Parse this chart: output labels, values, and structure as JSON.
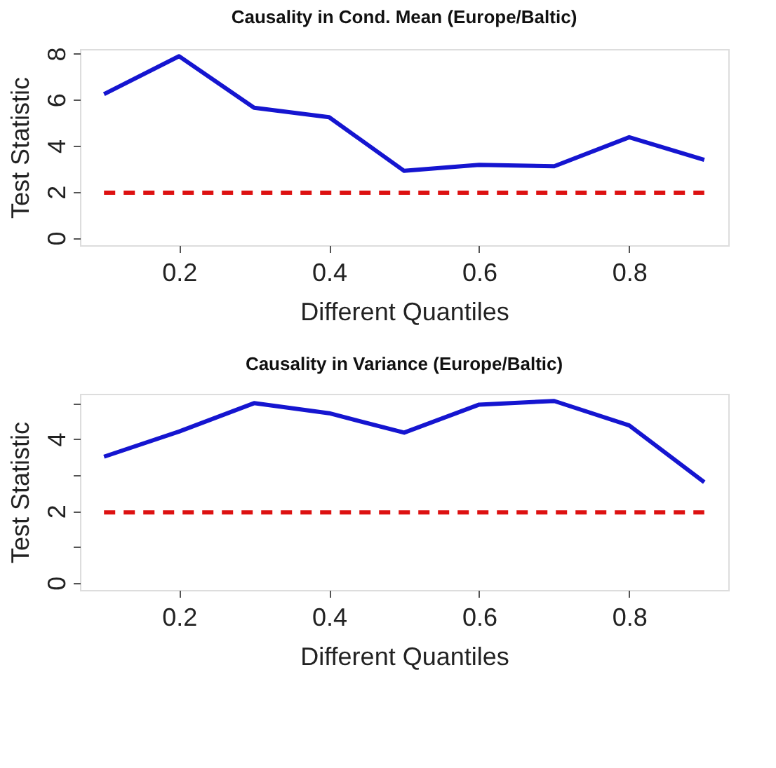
{
  "chart_data": [
    {
      "type": "line",
      "title": "Causality in Cond. Mean (Europe/Baltic)",
      "xlabel": "Different Quantiles",
      "ylabel": "Test Statistic",
      "x": [
        0.1,
        0.2,
        0.3,
        0.4,
        0.5,
        0.6,
        0.7,
        0.8,
        0.9
      ],
      "series": [
        {
          "color": "#1515d0",
          "values": [
            6.24,
            7.89,
            5.65,
            5.24,
            2.91,
            3.17,
            3.11,
            4.37,
            3.39
          ]
        }
      ],
      "ref_lines": [
        {
          "axis": "y",
          "value": 1.96,
          "color": "#dd1111",
          "line_style": "dashed"
        }
      ],
      "xlim": [
        0.068,
        0.932
      ],
      "xticks": [
        0.2,
        0.4,
        0.6,
        0.8
      ],
      "ylim": [
        -0.32,
        8.2
      ],
      "yticks": [
        0,
        2,
        4,
        6,
        8
      ],
      "grid": false,
      "marker": "none",
      "line_style": "solid"
    },
    {
      "type": "line",
      "title": "Causality in Variance (Europe/Baltic)",
      "xlabel": "Different Quantiles",
      "ylabel": "Test Statistic",
      "x": [
        0.1,
        0.2,
        0.3,
        0.4,
        0.5,
        0.6,
        0.7,
        0.8,
        0.9
      ],
      "series": [
        {
          "color": "#1515d0",
          "values": [
            3.51,
            4.21,
            5.0,
            4.72,
            4.18,
            4.96,
            5.06,
            4.38,
            2.8
          ]
        }
      ],
      "ref_lines": [
        {
          "axis": "y",
          "value": 1.96,
          "color": "#dd1111",
          "line_style": "dashed"
        }
      ],
      "xlim": [
        0.068,
        0.932
      ],
      "xticks": [
        0.2,
        0.4,
        0.6,
        0.8
      ],
      "ylim": [
        -0.2,
        5.26
      ],
      "yticks": [
        0,
        {
          "value": 1,
          "label": null
        },
        2,
        {
          "value": 3,
          "label": null
        },
        4,
        {
          "value": 5,
          "label": null
        }
      ],
      "grid": false,
      "marker": "none",
      "line_style": "solid"
    }
  ]
}
